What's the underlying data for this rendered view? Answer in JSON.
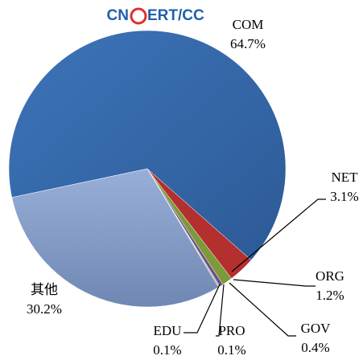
{
  "chart_data": {
    "type": "pie",
    "watermark": [
      "CN",
      "ERT/CC"
    ],
    "categories": [
      "COM",
      "NET",
      "ORG",
      "GOV",
      "PRO",
      "EDU",
      "其他"
    ],
    "values": [
      64.7,
      3.1,
      1.2,
      0.4,
      0.1,
      0.1,
      30.2
    ],
    "value_labels": [
      "64.7%",
      "3.1%",
      "1.2%",
      "0.4%",
      "0.1%",
      "0.1%",
      "30.2%"
    ],
    "colors": [
      "#3b6cae",
      "#b3302f",
      "#7c9a38",
      "#6a4c8c",
      "#3a9ab0",
      "#e8801f",
      "#8ea6cf"
    ]
  }
}
